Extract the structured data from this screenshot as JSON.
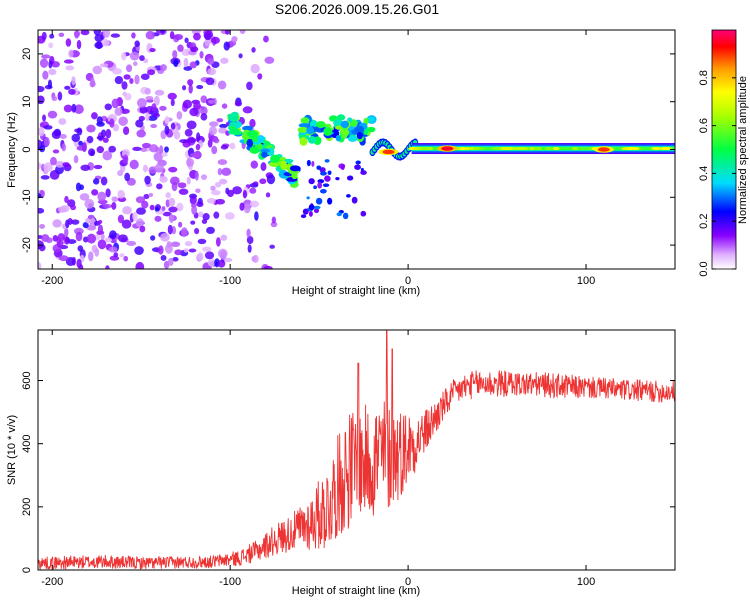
{
  "title": "S206.2026.009.15.26.G01",
  "chart_data": [
    {
      "type": "heatmap",
      "xlabel": "Height of straight line (km)",
      "ylabel": "Frequency (Hz)",
      "xlim": [
        -208,
        150
      ],
      "ylim": [
        -25,
        25
      ],
      "xticks": [
        -200,
        -100,
        0,
        100
      ],
      "yticks": [
        -20,
        -10,
        0,
        10,
        20
      ],
      "colorbar": {
        "label": "Normalized spectral amplitude",
        "range": [
          0,
          1
        ],
        "ticks": [
          "0.0",
          "0.2",
          "0.4",
          "0.6",
          "0.8"
        ]
      },
      "features": [
        {
          "name": "dominant frequency line",
          "x_from": 2,
          "x_to": 150,
          "freq_hz": 0.2,
          "amplitude": 0.65
        },
        {
          "name": "strong peak",
          "x": 22,
          "freq_hz": 0.2,
          "amplitude": 0.95
        },
        {
          "name": "strong peak",
          "x": -11,
          "freq_hz": -0.5,
          "amplitude": 0.9
        },
        {
          "name": "strong peak",
          "x": 110,
          "freq_hz": 0.0,
          "amplitude": 0.9
        },
        {
          "name": "descending track",
          "x_from": -100,
          "x_to": -62,
          "freq_from_hz": 6,
          "freq_to_hz": -6,
          "amplitude": 0.45
        },
        {
          "name": "upper group",
          "x_from": -60,
          "x_to": -20,
          "freq_from_hz": 2,
          "freq_to_hz": 6,
          "amplitude": 0.45
        },
        {
          "name": "noise field",
          "x_from": -208,
          "x_to": -95,
          "freq_from_hz": -25,
          "freq_to_hz": 25,
          "amplitude": 0.12
        }
      ]
    },
    {
      "type": "line",
      "xlabel": "Height of straight line (km)",
      "ylabel": "SNR (10 * v/v)",
      "xlim": [
        -208,
        150
      ],
      "ylim": [
        0,
        760
      ],
      "xticks": [
        -200,
        -100,
        0,
        100
      ],
      "yticks": [
        0,
        200,
        400,
        600
      ],
      "color": "#ee3333",
      "series": [
        {
          "name": "SNR",
          "x": [
            -208,
            -190,
            -170,
            -150,
            -130,
            -110,
            -95,
            -85,
            -75,
            -65,
            -55,
            -45,
            -40,
            -35,
            -30,
            -25,
            -20,
            -15,
            -10,
            -5,
            0,
            5,
            10,
            15,
            20,
            25,
            30,
            35,
            40,
            45,
            50,
            60,
            70,
            80,
            90,
            100,
            110,
            120,
            130,
            140,
            150
          ],
          "values": [
            22,
            24,
            26,
            22,
            24,
            26,
            38,
            60,
            95,
            120,
            150,
            200,
            260,
            310,
            330,
            340,
            350,
            360,
            360,
            370,
            390,
            410,
            440,
            480,
            520,
            555,
            575,
            585,
            590,
            590,
            590,
            590,
            588,
            585,
            580,
            578,
            575,
            570,
            568,
            565,
            565
          ],
          "noise_amplitude": [
            20,
            22,
            22,
            20,
            20,
            20,
            25,
            35,
            50,
            60,
            90,
            140,
            160,
            190,
            190,
            180,
            190,
            200,
            170,
            150,
            120,
            90,
            70,
            60,
            50,
            45,
            45,
            45,
            45,
            45,
            45,
            40,
            40,
            40,
            40,
            35,
            35,
            35,
            35,
            35,
            35
          ],
          "peaks": [
            {
              "x": -28,
              "value": 655
            },
            {
              "x": -12,
              "value": 760
            },
            {
              "x": -9,
              "value": 700
            }
          ]
        }
      ]
    }
  ]
}
